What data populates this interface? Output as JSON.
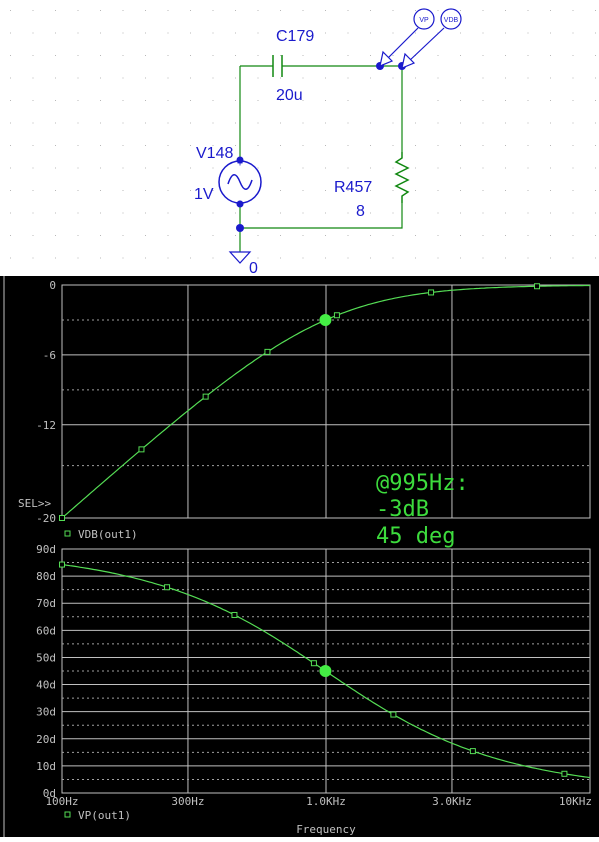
{
  "schematic": {
    "components": {
      "capacitor": {
        "name": "C179",
        "value": "20u"
      },
      "source": {
        "name": "V148",
        "value": "1V"
      },
      "resistor": {
        "name": "R457",
        "value": "8"
      },
      "ground": {
        "label": "0"
      }
    },
    "probes": [
      "VP",
      "VDB"
    ],
    "colors": {
      "wire": "#118811",
      "part": "#1a1acc",
      "grid_dot": "#b8b8b8"
    }
  },
  "chart_data": [
    {
      "type": "line",
      "x_scale": "log",
      "xlim": [
        100,
        10000
      ],
      "ylim": [
        -20,
        0
      ],
      "y_ticks": [
        "0",
        "-6",
        "-12",
        "-20"
      ],
      "sel_marker": "SEL>>",
      "grid": true,
      "series": [
        {
          "name": "VDB(out1)",
          "color": "#55dd55",
          "x": [
            100,
            200,
            300,
            500,
            700,
            1000,
            1500,
            2000,
            3000,
            5000,
            7000,
            10000
          ],
          "y": [
            -19.6,
            -14.0,
            -10.7,
            -6.9,
            -4.9,
            -3.0,
            -1.6,
            -1.0,
            -0.48,
            -0.18,
            -0.09,
            -0.04
          ],
          "marker_x": [
            100,
            200,
            350,
            600,
            1100,
            2500,
            6300
          ]
        }
      ],
      "highlight": {
        "x": 995,
        "y": -3
      },
      "annotation": [
        "@995Hz:",
        "-3dB",
        "45 deg"
      ]
    },
    {
      "type": "line",
      "x_scale": "log",
      "xlim": [
        100,
        10000
      ],
      "ylim": [
        0,
        90
      ],
      "y_ticks": [
        "90d",
        "80d",
        "70d",
        "60d",
        "50d",
        "40d",
        "30d",
        "20d",
        "10d",
        "0d"
      ],
      "x_ticks": [
        "100Hz",
        "300Hz",
        "1.0KHz",
        "3.0KHz",
        "10KHz"
      ],
      "xlabel": "Frequency",
      "grid": true,
      "series": [
        {
          "name": "VP(out1)",
          "color": "#55dd55",
          "x": [
            100,
            200,
            300,
            500,
            700,
            1000,
            1500,
            2000,
            3000,
            5000,
            7000,
            10000
          ],
          "y": [
            84.3,
            78.7,
            73.3,
            63.3,
            54.9,
            45.1,
            33.6,
            26.4,
            18.3,
            11.3,
            8.1,
            5.7
          ],
          "marker_x": [
            100,
            250,
            450,
            900,
            1800,
            3600,
            8000
          ]
        }
      ],
      "highlight": {
        "x": 995,
        "y": 45
      }
    }
  ]
}
